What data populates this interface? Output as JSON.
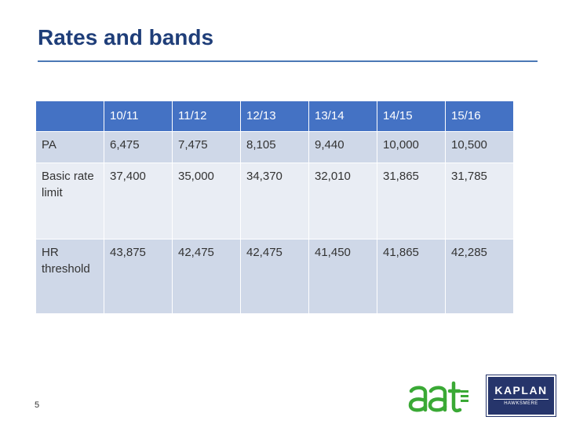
{
  "title": "Rates and bands",
  "table": {
    "header": [
      "",
      "10/11",
      "11/12",
      "12/13",
      "13/14",
      "14/15",
      "15/16"
    ],
    "rows": [
      [
        "PA",
        "6,475",
        "7,475",
        "8,105",
        "9,440",
        "10,000",
        "10,500"
      ],
      [
        "Basic rate limit",
        "37,400",
        "35,000",
        "34,370",
        "32,010",
        "31,865",
        "31,785"
      ],
      [
        "HR threshold",
        "43,875",
        "42,475",
        "42,475",
        "41,450",
        "41,865",
        "42,285"
      ]
    ]
  },
  "page_number": "5",
  "logos": {
    "aat": "aat",
    "kaplan": "KAPLAN",
    "kaplan_sub": "HAWKSMERE"
  },
  "colors": {
    "title": "#1f3e79",
    "header_bg": "#4472c4",
    "row_dark": "#cfd8e8",
    "row_light": "#e9edf4",
    "aat_green": "#3aa935",
    "kaplan_navy": "#26356b"
  }
}
